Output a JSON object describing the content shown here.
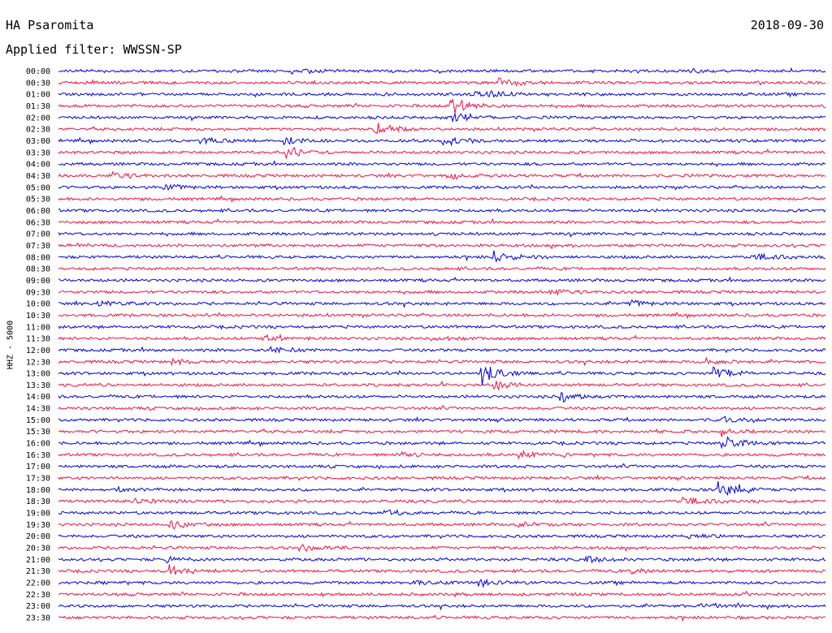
{
  "header": {
    "station": "HA Psaromita",
    "date": "2018-09-30",
    "filter": "Applied filter: WWSSN-SP"
  },
  "chart_data": {
    "type": "line",
    "chart_kind": "helicorder",
    "ylabel": "HHZ - 5000",
    "row_minutes": 30,
    "hours": "00:00-23:30",
    "row_labels": [
      "00:00",
      "00:30",
      "01:00",
      "01:30",
      "02:00",
      "02:30",
      "03:00",
      "03:30",
      "04:00",
      "04:30",
      "05:00",
      "05:30",
      "06:00",
      "06:30",
      "07:00",
      "07:30",
      "08:00",
      "08:30",
      "09:00",
      "09:30",
      "10:00",
      "10:30",
      "11:00",
      "11:30",
      "12:00",
      "12:30",
      "13:00",
      "13:30",
      "14:00",
      "14:30",
      "15:00",
      "15:30",
      "16:00",
      "16:30",
      "17:00",
      "17:30",
      "18:00",
      "18:30",
      "19:00",
      "19:30",
      "20:00",
      "20:30",
      "21:00",
      "21:30",
      "22:00",
      "22:30",
      "23:00",
      "23:30"
    ],
    "colors": [
      "#0000dd",
      "#ee1144"
    ],
    "grid": false,
    "events": [
      {
        "row": 0,
        "minute": 9.6,
        "amp": 1.8
      },
      {
        "row": 0,
        "minute": 24.6,
        "amp": 2.0
      },
      {
        "row": 1,
        "minute": 17.2,
        "amp": 6.0
      },
      {
        "row": 2,
        "minute": 16.0,
        "amp": 3.0
      },
      {
        "row": 2,
        "minute": 16.7,
        "amp": 2.4
      },
      {
        "row": 3,
        "minute": 15.3,
        "amp": 10.0
      },
      {
        "row": 4,
        "minute": 15.3,
        "amp": 6.0
      },
      {
        "row": 5,
        "minute": 12.3,
        "amp": 6.0
      },
      {
        "row": 6,
        "minute": 5.5,
        "amp": 3.0
      },
      {
        "row": 6,
        "minute": 8.8,
        "amp": 4.0
      },
      {
        "row": 6,
        "minute": 15.0,
        "amp": 5.0
      },
      {
        "row": 7,
        "minute": 8.9,
        "amp": 5.0
      },
      {
        "row": 9,
        "minute": 2.1,
        "amp": 3.0
      },
      {
        "row": 9,
        "minute": 15.1,
        "amp": 3.0
      },
      {
        "row": 10,
        "minute": 4.1,
        "amp": 3.0
      },
      {
        "row": 16,
        "minute": 17.0,
        "amp": 5.0
      },
      {
        "row": 16,
        "minute": 27.2,
        "amp": 3.0
      },
      {
        "row": 19,
        "minute": 19.2,
        "amp": 3.0
      },
      {
        "row": 20,
        "minute": 1.5,
        "amp": 3.0
      },
      {
        "row": 20,
        "minute": 22.3,
        "amp": 3.0
      },
      {
        "row": 23,
        "minute": 7.9,
        "amp": 3.0
      },
      {
        "row": 23,
        "minute": 14.5,
        "amp": 3.0
      },
      {
        "row": 24,
        "minute": 8.2,
        "amp": 4.0
      },
      {
        "row": 25,
        "minute": 4.4,
        "amp": 3.0
      },
      {
        "row": 25,
        "minute": 25.3,
        "amp": 3.0
      },
      {
        "row": 26,
        "minute": 16.5,
        "amp": 12.0
      },
      {
        "row": 26,
        "minute": 25.6,
        "amp": 8.0
      },
      {
        "row": 27,
        "minute": 17.0,
        "amp": 4.0
      },
      {
        "row": 28,
        "minute": 19.6,
        "amp": 5.0
      },
      {
        "row": 30,
        "minute": 25.9,
        "amp": 3.0
      },
      {
        "row": 31,
        "minute": 25.8,
        "amp": 4.0
      },
      {
        "row": 32,
        "minute": 25.9,
        "amp": 8.0
      },
      {
        "row": 33,
        "minute": 18.0,
        "amp": 4.0
      },
      {
        "row": 33,
        "minute": 13.4,
        "amp": 3.0
      },
      {
        "row": 36,
        "minute": 2.3,
        "amp": 3.0
      },
      {
        "row": 36,
        "minute": 25.8,
        "amp": 8.0
      },
      {
        "row": 37,
        "minute": 3.0,
        "amp": 3.0
      },
      {
        "row": 37,
        "minute": 24.4,
        "amp": 4.0
      },
      {
        "row": 38,
        "minute": 12.7,
        "amp": 3.0
      },
      {
        "row": 39,
        "minute": 4.3,
        "amp": 5.0
      },
      {
        "row": 39,
        "minute": 18.0,
        "amp": 3.0
      },
      {
        "row": 40,
        "minute": 24.6,
        "amp": 3.0
      },
      {
        "row": 41,
        "minute": 9.5,
        "amp": 3.0
      },
      {
        "row": 42,
        "minute": 4.2,
        "amp": 3.0
      },
      {
        "row": 42,
        "minute": 20.6,
        "amp": 3.0
      },
      {
        "row": 43,
        "minute": 4.3,
        "amp": 6.0
      },
      {
        "row": 43,
        "minute": 22.4,
        "amp": 3.0
      },
      {
        "row": 44,
        "minute": 16.4,
        "amp": 5.0
      },
      {
        "row": 44,
        "minute": 13.7,
        "amp": 3.0
      },
      {
        "row": 46,
        "minute": 25.0,
        "amp": 3.0
      }
    ]
  }
}
